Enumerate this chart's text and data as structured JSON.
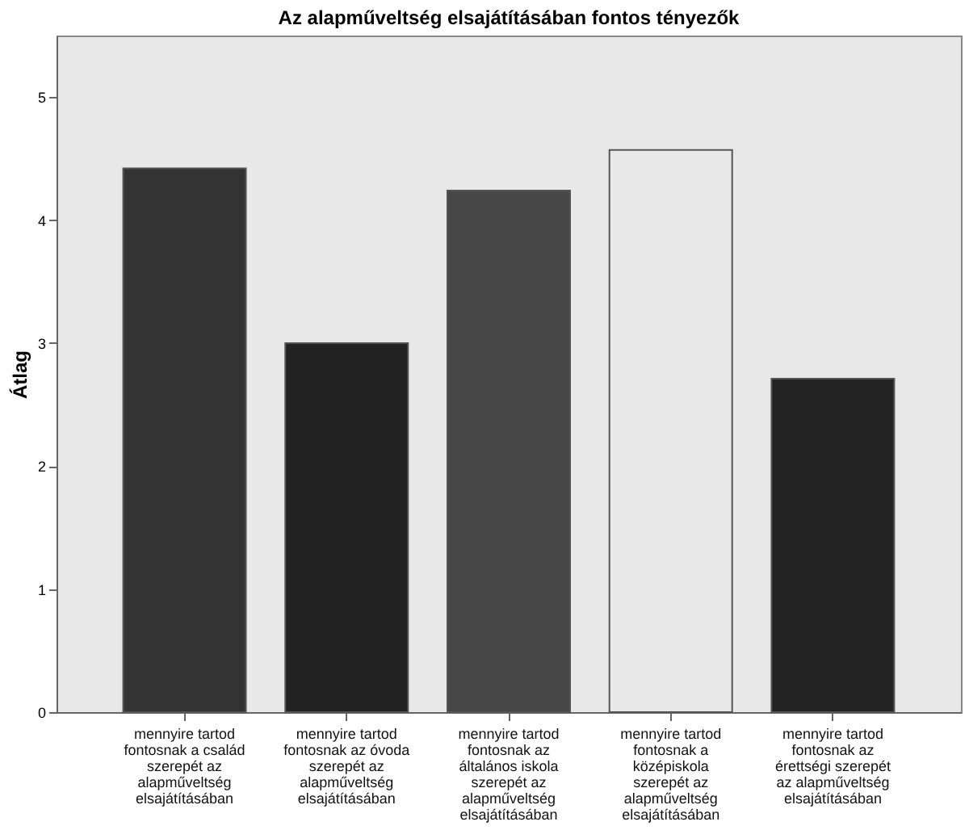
{
  "chart_data": {
    "type": "bar",
    "title": "Az alapműveltség elsajátításában fontos tényezők",
    "ylabel": "Átlag",
    "categories": [
      "mennyire tartod fontosnak a család szerepét az alapműveltség elsajátításában",
      "mennyire tartod fontosnak az óvoda szerepét az alapműveltség elsajátításában",
      "mennyire tartod fontosnak az általános iskola szerepét az alapműveltség elsajátításában",
      "mennyire tartod fontosnak a középiskola szerepét az alapműveltség elsajátításában",
      "mennyire tartod fontosnak az érettségi szerepét az alapműveltség elsajátításában"
    ],
    "values": [
      4.42,
      3.0,
      4.24,
      4.57,
      2.71
    ],
    "colors": [
      "#333333",
      "#222222",
      "#474747",
      "#e8e8e8",
      "#232323"
    ],
    "ylim": [
      0,
      5.5
    ],
    "yticks": [
      0,
      1,
      2,
      3,
      4,
      5
    ],
    "grid": false
  }
}
